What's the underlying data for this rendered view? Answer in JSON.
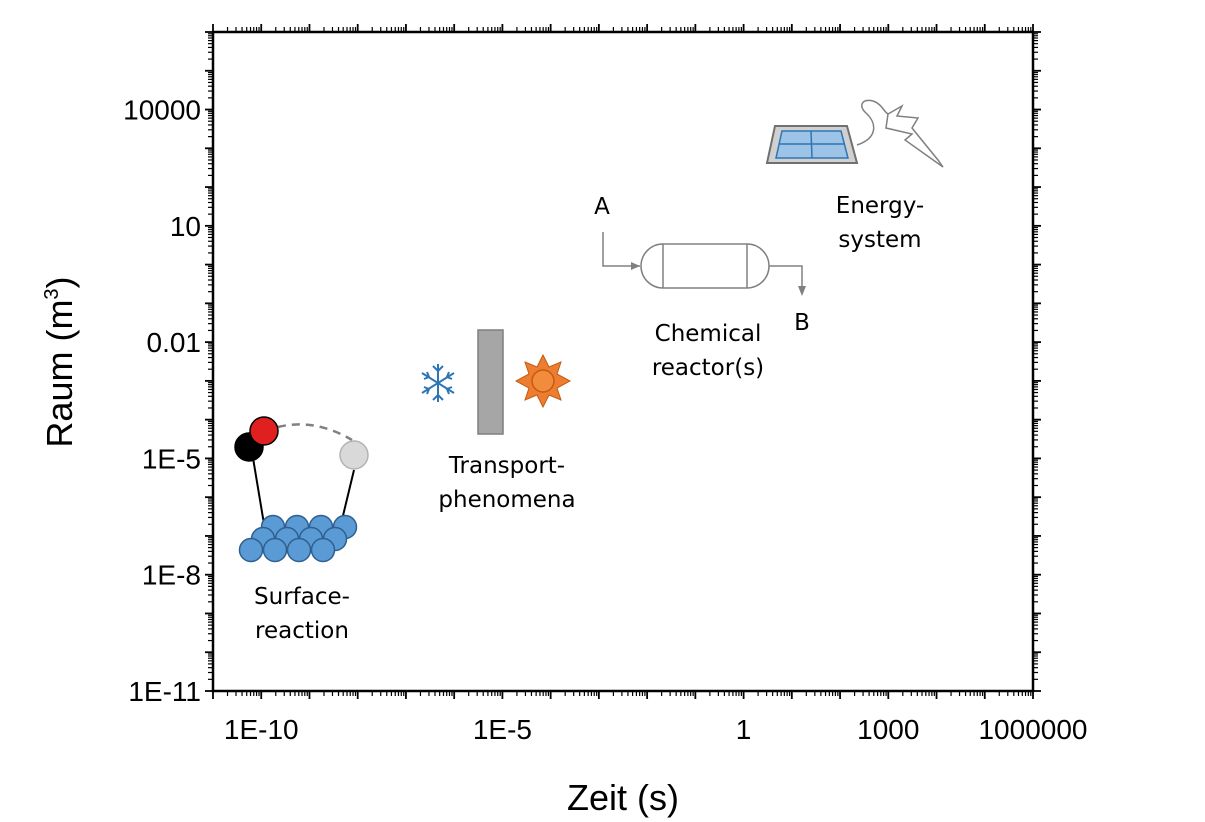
{
  "chart_data": {
    "type": "scatter",
    "xlabel": "Zeit (s)",
    "ylabel_main": "Raum (m",
    "ylabel_sup": "3",
    "ylabel_close": ")",
    "xscale": "log",
    "yscale": "log",
    "xlim": [
      1e-11,
      1000000.0
    ],
    "ylim": [
      1e-11,
      1000000.0
    ],
    "grid": false,
    "x_ticks": [
      {
        "value": 1e-10,
        "label": "1E-10"
      },
      {
        "value": 1e-05,
        "label": "1E-5"
      },
      {
        "value": 1,
        "label": "1"
      },
      {
        "value": 1000,
        "label": "1000"
      },
      {
        "value": 1000000,
        "label": "1000000"
      }
    ],
    "y_ticks": [
      {
        "value": 1e-11,
        "label": "1E-11"
      },
      {
        "value": 1e-08,
        "label": "1E-8"
      },
      {
        "value": 1e-05,
        "label": "1E-5"
      },
      {
        "value": 0.01,
        "label": "0.01"
      },
      {
        "value": 10,
        "label": "10"
      },
      {
        "value": 10000,
        "label": "10000"
      }
    ],
    "annotations": [
      {
        "id": "surface",
        "lines": [
          "Surface-",
          "reaction"
        ],
        "x": 1.5e-09,
        "y": 1e-08
      },
      {
        "id": "transport",
        "lines": [
          "Transport-",
          "phenomena"
        ],
        "x": 5e-06,
        "y": 1e-05
      },
      {
        "id": "reactor",
        "lines": [
          "Chemical",
          "reactor(s)"
        ],
        "x": 1,
        "y": 0.01
      },
      {
        "id": "energy",
        "lines": [
          "Energy-",
          "system"
        ],
        "x": 3000,
        "y": 10
      }
    ],
    "reactor_labels": {
      "input": "A",
      "output": "B"
    }
  }
}
